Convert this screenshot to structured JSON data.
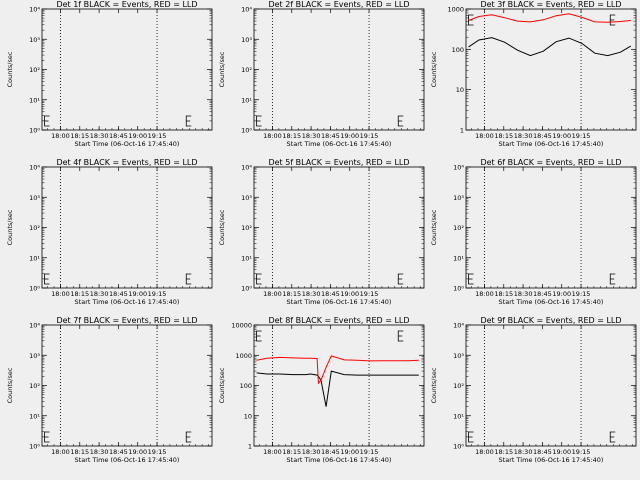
{
  "chart_data": [
    {
      "type": "line",
      "title": "Det 1f BLACK = Events, RED = LLD",
      "xlabel": "Start Time (06-Oct-16 17:45:40)",
      "ylabel": "Counts/sec",
      "x_ticks": [
        "18:00",
        "18:15",
        "18:30",
        "18:45",
        "19:00",
        "19:15"
      ],
      "y_scale": "log",
      "ylim": [
        1,
        10000
      ],
      "y_ticks": [
        "10⁰",
        "10¹",
        "10²",
        "10³",
        "10⁴"
      ],
      "marker_x": [
        2,
        112
      ],
      "series": []
    },
    {
      "type": "line",
      "title": "Det 2f BLACK = Events, RED = LLD",
      "xlabel": "Start Time (06-Oct-16 17:45:40)",
      "ylabel": "Counts/sec",
      "x_ticks": [
        "18:00",
        "18:15",
        "18:30",
        "18:45",
        "19:00",
        "19:15"
      ],
      "y_scale": "log",
      "ylim": [
        1,
        10000
      ],
      "y_ticks": [
        "10⁰",
        "10¹",
        "10²",
        "10³",
        "10⁴"
      ],
      "marker_x": [
        2,
        112
      ],
      "series": []
    },
    {
      "type": "line",
      "title": "Det 3f BLACK = Events, RED = LLD",
      "xlabel": "Start Time (06-Oct-16 17:45:40)",
      "ylabel": "Counts/sec",
      "x_ticks": [
        "18:00",
        "18:15",
        "18:30",
        "18:45",
        "19:00",
        "19:15"
      ],
      "y_scale": "log",
      "ylim": [
        1,
        1000
      ],
      "y_ticks": [
        "1",
        "10",
        "100",
        "1000"
      ],
      "marker_x": [
        2,
        112
      ],
      "series": [
        {
          "color": "#000000",
          "x": [
            2,
            10,
            20,
            30,
            40,
            50,
            60,
            70,
            80,
            90,
            100,
            110,
            120,
            128
          ],
          "y": [
            115,
            170,
            195,
            150,
            95,
            70,
            90,
            155,
            190,
            140,
            80,
            70,
            85,
            120
          ]
        },
        {
          "color": "#ff0000",
          "x": [
            2,
            10,
            20,
            30,
            40,
            50,
            60,
            70,
            80,
            90,
            100,
            110,
            120,
            128
          ],
          "y": [
            520,
            650,
            720,
            610,
            500,
            480,
            540,
            680,
            760,
            620,
            480,
            470,
            490,
            520
          ]
        }
      ]
    },
    {
      "type": "line",
      "title": "Det 4f BLACK = Events, RED = LLD",
      "xlabel": "Start Time (06-Oct-16 17:45:40)",
      "ylabel": "Counts/sec",
      "x_ticks": [
        "18:00",
        "18:15",
        "18:30",
        "18:45",
        "19:00",
        "19:15"
      ],
      "y_scale": "log",
      "ylim": [
        1,
        10000
      ],
      "y_ticks": [
        "10⁰",
        "10¹",
        "10²",
        "10³",
        "10⁴"
      ],
      "marker_x": [
        2,
        112
      ],
      "series": []
    },
    {
      "type": "line",
      "title": "Det 5f BLACK = Events, RED = LLD",
      "xlabel": "Start Time (06-Oct-16 17:45:40)",
      "ylabel": "Counts/sec",
      "x_ticks": [
        "18:00",
        "18:15",
        "18:30",
        "18:45",
        "19:00",
        "19:15"
      ],
      "y_scale": "log",
      "ylim": [
        1,
        10000
      ],
      "y_ticks": [
        "10⁰",
        "10¹",
        "10²",
        "10³",
        "10⁴"
      ],
      "marker_x": [
        2,
        112
      ],
      "series": []
    },
    {
      "type": "line",
      "title": "Det 6f BLACK = Events, RED = LLD",
      "xlabel": "Start Time (06-Oct-16 17:45:40)",
      "ylabel": "Counts/sec",
      "x_ticks": [
        "18:00",
        "18:15",
        "18:30",
        "18:45",
        "19:00",
        "19:15"
      ],
      "y_scale": "log",
      "ylim": [
        1,
        10000
      ],
      "y_ticks": [
        "10⁰",
        "10¹",
        "10²",
        "10³",
        "10⁴"
      ],
      "marker_x": [
        2,
        112
      ],
      "series": []
    },
    {
      "type": "line",
      "title": "Det 7f BLACK = Events, RED = LLD",
      "xlabel": "Start Time (06-Oct-16 17:45:40)",
      "ylabel": "Counts/sec",
      "x_ticks": [
        "18:00",
        "18:15",
        "18:30",
        "18:45",
        "19:00",
        "19:15"
      ],
      "y_scale": "log",
      "ylim": [
        1,
        10000
      ],
      "y_ticks": [
        "10⁰",
        "10¹",
        "10²",
        "10³",
        "10⁴"
      ],
      "marker_x": [
        2,
        112
      ],
      "series": []
    },
    {
      "type": "line",
      "title": "Det 8f BLACK = Events, RED = LLD",
      "xlabel": "Start Time (06-Oct-16 17:45:40)",
      "ylabel": "Counts/sec",
      "x_ticks": [
        "18:00",
        "18:15",
        "18:30",
        "18:45",
        "19:00",
        "19:15"
      ],
      "y_scale": "log",
      "ylim": [
        1,
        10000
      ],
      "y_ticks": [
        "1",
        "10",
        "100",
        "1000",
        "10000"
      ],
      "marker_x": [
        2,
        112
      ],
      "series": [
        {
          "color": "#000000",
          "x": [
            2,
            10,
            20,
            30,
            40,
            44,
            49,
            50,
            52,
            56,
            60,
            70,
            80,
            90,
            100,
            110,
            120,
            128
          ],
          "y": [
            260,
            240,
            240,
            230,
            230,
            240,
            220,
            200,
            150,
            20,
            300,
            230,
            220,
            220,
            220,
            220,
            220,
            220
          ]
        },
        {
          "color": "#ff0000",
          "x": [
            2,
            10,
            20,
            30,
            40,
            44,
            49,
            50,
            52,
            56,
            60,
            70,
            80,
            90,
            100,
            110,
            120,
            128
          ],
          "y": [
            680,
            800,
            850,
            820,
            800,
            790,
            780,
            120,
            150,
            400,
            950,
            700,
            680,
            650,
            660,
            660,
            660,
            680
          ]
        }
      ]
    },
    {
      "type": "line",
      "title": "Det 9f BLACK = Events, RED = LLD",
      "xlabel": "Start Time (06-Oct-16 17:45:40)",
      "ylabel": "Counts/sec",
      "x_ticks": [
        "18:00",
        "18:15",
        "18:30",
        "18:45",
        "19:00",
        "19:15"
      ],
      "y_scale": "log",
      "ylim": [
        1,
        10000
      ],
      "y_ticks": [
        "10⁰",
        "10¹",
        "10²",
        "10³",
        "10⁴"
      ],
      "marker_x": [
        2,
        112
      ],
      "series": []
    }
  ]
}
